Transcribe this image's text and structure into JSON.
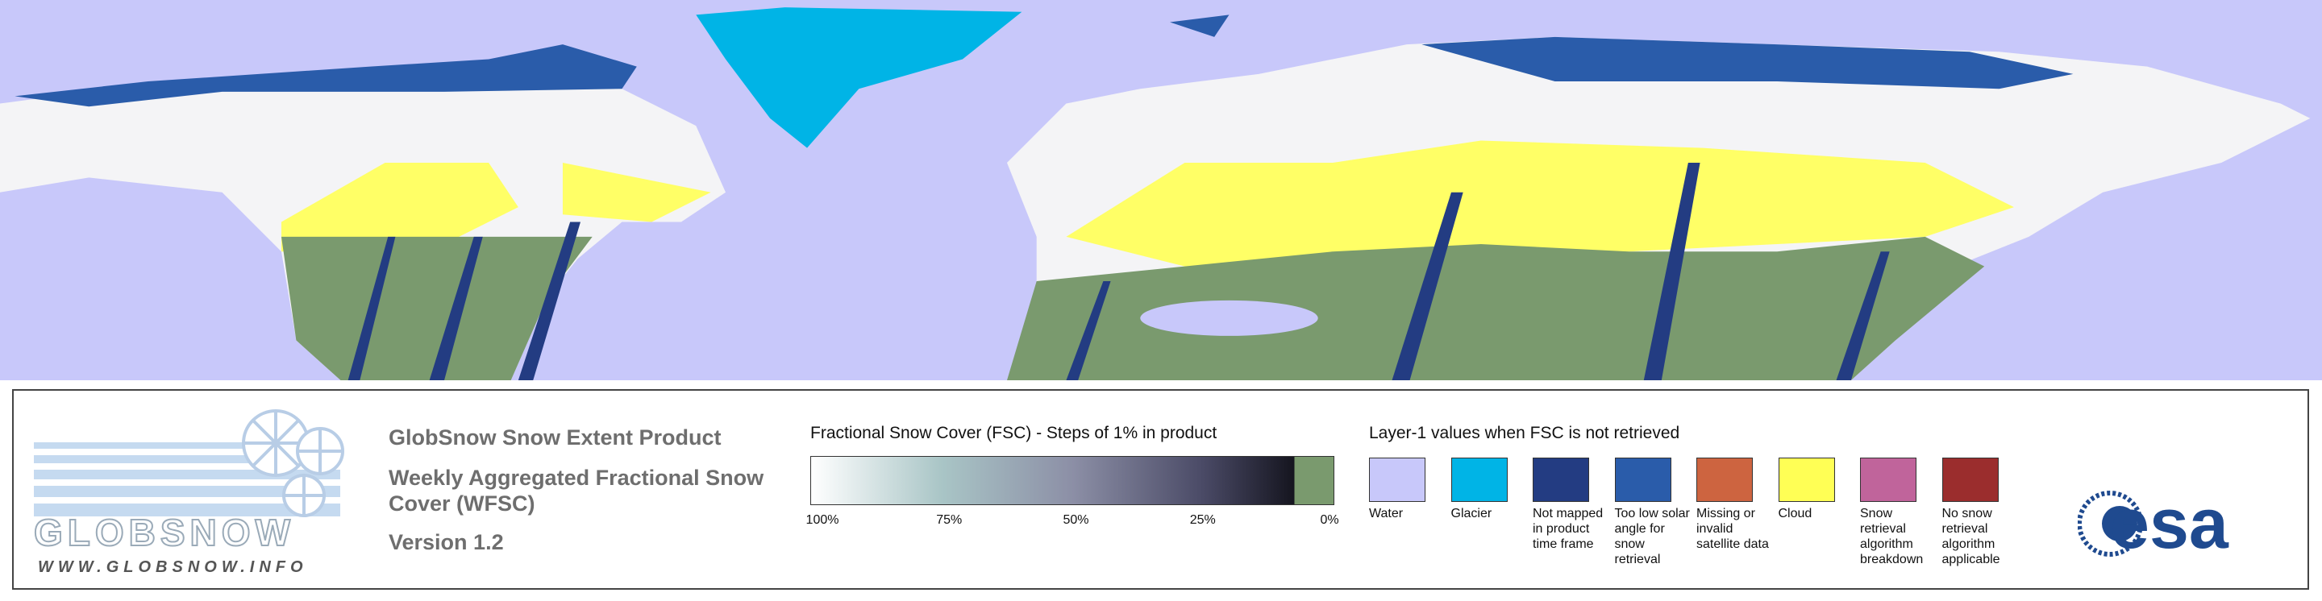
{
  "header": {
    "title": "GlobSnow Snow Extent Product",
    "subtitle": "Weekly Aggregated Fractional Snow Cover (WFSC)",
    "version": "Version 1.2"
  },
  "logos": {
    "globsnow": "GLOBSNOW",
    "globsnow_url": "WWW.GLOBSNOW.INFO",
    "esa": "esa"
  },
  "colorbar": {
    "title": "Fractional Snow Cover (FSC) - Steps of 1% in product",
    "labels": [
      "100%",
      "75%",
      "50%",
      "25%",
      "0%"
    ]
  },
  "legend": {
    "title": "Layer-1 values when FSC is not retrieved",
    "items": [
      {
        "label": "Water",
        "color": "#c8c8fa"
      },
      {
        "label": "Glacier",
        "color": "#00b4e6"
      },
      {
        "label": "Not mapped in product time frame",
        "color": "#233c82"
      },
      {
        "label": "Too low solar angle for snow retrieval",
        "color": "#2a5caa"
      },
      {
        "label": "Missing or invalid satellite data",
        "color": "#cd6440"
      },
      {
        "label": "Cloud",
        "color": "#ffff55"
      },
      {
        "label": "Snow retrieval algorithm breakdown",
        "color": "#c0649b"
      },
      {
        "label": "No snow retrieval algorithm applicable",
        "color": "#9b2d2d"
      }
    ]
  }
}
